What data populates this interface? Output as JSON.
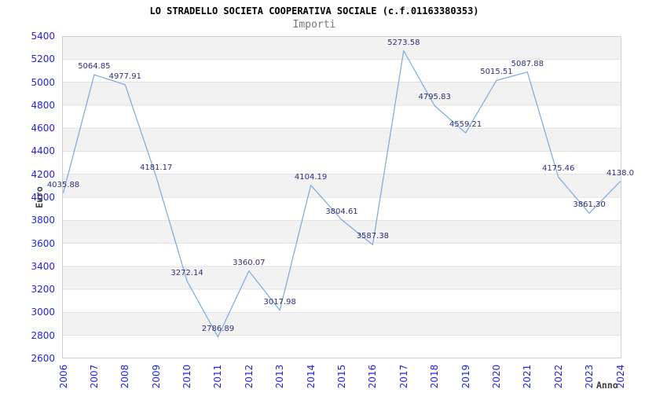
{
  "chart_data": {
    "type": "line",
    "title": "LO STRADELLO SOCIETA COOPERATIVA SOCIALE (c.f.01163380353)",
    "subtitle": "Importi",
    "xlabel": "Anno",
    "ylabel": "Euro",
    "categories": [
      "2006",
      "2007",
      "2008",
      "2009",
      "2010",
      "2011",
      "2012",
      "2013",
      "2014",
      "2015",
      "2016",
      "2017",
      "2018",
      "2019",
      "2020",
      "2021",
      "2022",
      "2023",
      "2024"
    ],
    "values": [
      4035.88,
      5064.85,
      4977.91,
      4181.17,
      3272.14,
      2786.89,
      3360.07,
      3017.98,
      4104.19,
      3804.61,
      3587.38,
      5273.58,
      4795.83,
      4559.21,
      5015.51,
      5087.88,
      4175.46,
      3861.3,
      4138.0
    ],
    "point_labels": [
      "4035.88",
      "5064.85",
      "4977.91",
      "4181.17",
      "3272.14",
      "2786.89",
      "3360.07",
      "3017.98",
      "4104.19",
      "3804.61",
      "3587.38",
      "5273.58",
      "4795.83",
      "4559.21",
      "5015.51",
      "5087.88",
      "4175.46",
      "3861.30",
      "4138.0"
    ],
    "ylim": [
      2600,
      5400
    ],
    "y_tick_step": 200,
    "y_tick_labels": [
      "5400",
      "5200",
      "5000",
      "4800",
      "4600",
      "4400",
      "4200",
      "4000",
      "3800",
      "3600",
      "3400",
      "3200",
      "3000",
      "2800",
      "2600"
    ],
    "grid": "horizontal gridlines with alternating shaded bands",
    "legend_position": "none",
    "colors": {
      "line": "#78aadd",
      "axis_tick_label": "#2222dd",
      "point_label": "#2e2e78",
      "band_shaded": "#f2f2f2",
      "band_plain": "#ffffff",
      "gridline": "#e2e2e2",
      "plot_border": "#cfcfcf",
      "title": "#000000",
      "subtitle": "#767676",
      "axis_title": "#3d3d3d",
      "background": "#ffffff"
    }
  }
}
